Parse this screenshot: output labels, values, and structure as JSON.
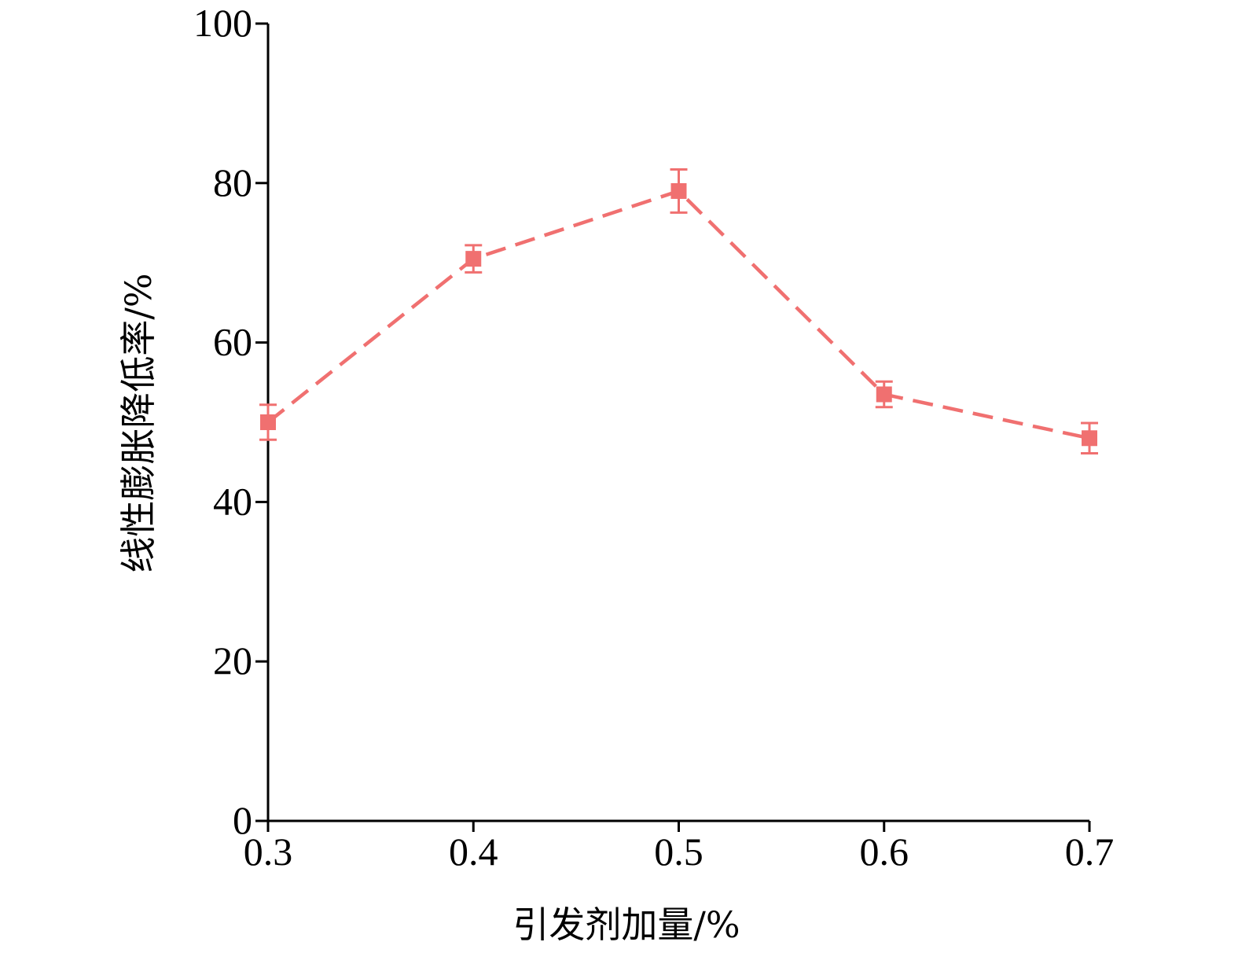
{
  "chart_data": {
    "type": "line",
    "title": "",
    "xlabel": "引发剂加量/%",
    "ylabel": "线性膨胀降低率/%",
    "xlim": [
      0.3,
      0.7
    ],
    "ylim": [
      0,
      100
    ],
    "xticks": [
      0.3,
      0.4,
      0.5,
      0.6,
      0.7
    ],
    "xtick_labels": [
      "0.3",
      "0.4",
      "0.5",
      "0.6",
      "0.7"
    ],
    "yticks": [
      0,
      20,
      40,
      60,
      80,
      100
    ],
    "ytick_labels": [
      "0",
      "20",
      "40",
      "60",
      "80",
      "100"
    ],
    "grid": false,
    "legend": "none",
    "series": [
      {
        "x": [
          0.3,
          0.4,
          0.5,
          0.6,
          0.7
        ],
        "y": [
          50.0,
          70.5,
          79.0,
          53.5,
          48.0
        ],
        "error": [
          2.2,
          1.7,
          2.7,
          1.6,
          1.9
        ],
        "color": "#f07070",
        "line_style": "dashed",
        "marker": "square"
      }
    ]
  }
}
